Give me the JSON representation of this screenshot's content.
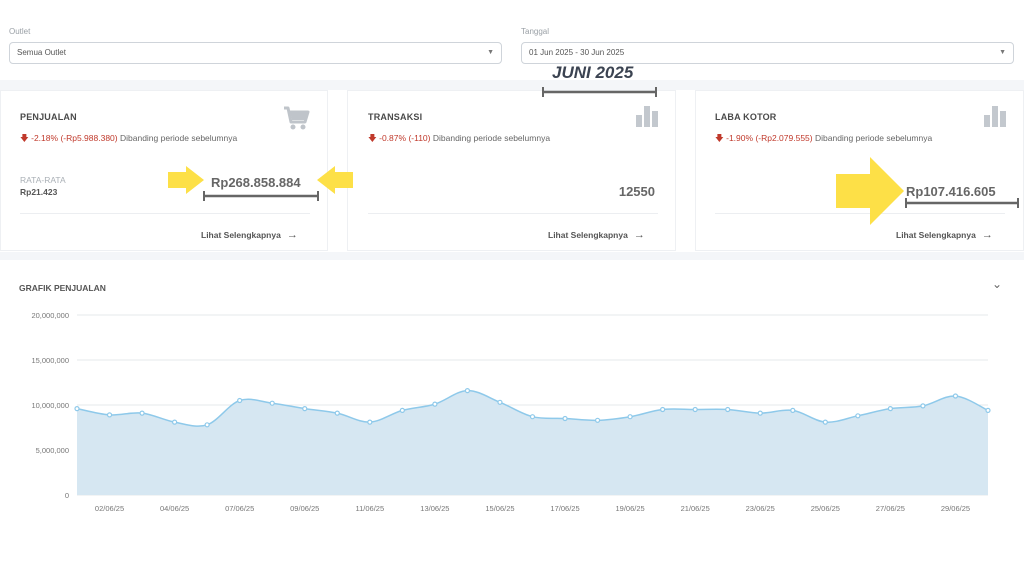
{
  "filters": {
    "outlet_label": "Outlet",
    "outlet_value": "Semua Outlet",
    "date_label": "Tanggal",
    "date_value": "01 Jun 2025 - 30 Jun 2025"
  },
  "annotation": {
    "title": "JUNI 2025"
  },
  "cards": [
    {
      "title": "PENJUALAN",
      "icon": "cart-icon",
      "change_pct": "-2.18%",
      "change_val": "(-Rp5.988.380)",
      "change_text": "Dibanding periode sebelumnya",
      "avg_label": "RATA-RATA",
      "avg_value": "Rp21.423",
      "value": "Rp268.858.884",
      "more": "Lihat Selengkapnya"
    },
    {
      "title": "TRANSAKSI",
      "icon": "bar-chart-icon",
      "change_pct": "-0.87%",
      "change_val": "(-110)",
      "change_text": "Dibanding periode sebelumnya",
      "value": "12550",
      "more": "Lihat Selengkapnya"
    },
    {
      "title": "LABA KOTOR",
      "icon": "bar-chart-icon",
      "change_pct": "-1.90%",
      "change_val": "(-Rp2.079.555)",
      "change_text": "Dibanding periode sebelumnya",
      "value": "Rp107.416.605",
      "more": "Lihat Selengkapnya"
    }
  ],
  "colors": {
    "negative": "#c0392b",
    "area_fill": "#d6e7f2",
    "line": "#8ec9ea",
    "highlight_arrow": "#fde047"
  },
  "chart_data": {
    "type": "area",
    "title": "GRAFIK PENJUALAN",
    "x": [
      "01/06/25",
      "02/06/25",
      "03/06/25",
      "04/06/25",
      "05/06/25",
      "07/06/25",
      "08/06/25",
      "09/06/25",
      "10/06/25",
      "11/06/25",
      "12/06/25",
      "13/06/25",
      "14/06/25",
      "15/06/25",
      "16/06/25",
      "17/06/25",
      "18/06/25",
      "19/06/25",
      "20/06/25",
      "21/06/25",
      "22/06/25",
      "23/06/25",
      "24/06/25",
      "25/06/25",
      "26/06/25",
      "27/06/25",
      "28/06/25",
      "29/06/25",
      "30/06/25"
    ],
    "xticks": [
      "02/06/25",
      "04/06/25",
      "07/06/25",
      "09/06/25",
      "11/06/25",
      "13/06/25",
      "15/06/25",
      "17/06/25",
      "19/06/25",
      "21/06/25",
      "23/06/25",
      "25/06/25",
      "27/06/25",
      "29/06/25"
    ],
    "values": [
      9600000,
      8900000,
      9100000,
      8100000,
      7800000,
      10500000,
      10200000,
      9600000,
      9100000,
      8100000,
      9400000,
      10100000,
      11600000,
      10300000,
      8700000,
      8500000,
      8300000,
      8700000,
      9500000,
      9500000,
      9500000,
      9100000,
      9400000,
      8100000,
      8800000,
      9600000,
      9900000,
      11000000,
      9400000
    ],
    "yticks": [
      "20,000,000",
      "15,000,000",
      "10,000,000",
      "5,000,000",
      "0"
    ],
    "ylim": [
      0,
      20000000
    ],
    "grid": true
  }
}
